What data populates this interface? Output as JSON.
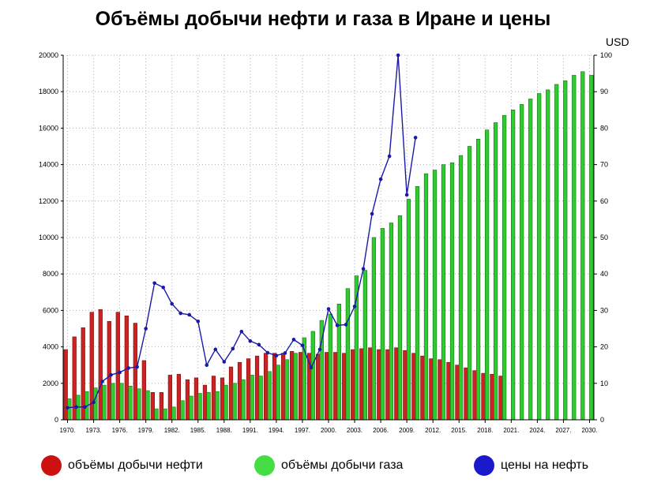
{
  "chart_data": {
    "type": "bar",
    "title": "Объёмы добычи нефти и газа в Иране и цены",
    "y2label": "USD",
    "x": [
      1970,
      1971,
      1972,
      1973,
      1974,
      1975,
      1976,
      1977,
      1978,
      1979,
      1980,
      1981,
      1982,
      1983,
      1984,
      1985,
      1986,
      1987,
      1988,
      1989,
      1990,
      1991,
      1992,
      1993,
      1994,
      1995,
      1996,
      1997,
      1998,
      1999,
      2000,
      2001,
      2002,
      2003,
      2004,
      2005,
      2006,
      2007,
      2008,
      2009,
      2010,
      2011,
      2012,
      2013,
      2014,
      2015,
      2016,
      2017,
      2018,
      2019,
      2020,
      2021,
      2022,
      2023,
      2024,
      2025,
      2026,
      2027,
      2028,
      2029,
      2030
    ],
    "xticks": [
      "1970.",
      "1973.",
      "1976.",
      "1979.",
      "1982.",
      "1985.",
      "1988.",
      "1991.",
      "1994.",
      "1997.",
      "2000.",
      "2003.",
      "2006.",
      "2009.",
      "2012.",
      "2015.",
      "2018.",
      "2021.",
      "2024.",
      "2027.",
      "2030."
    ],
    "ylim": [
      0,
      20000
    ],
    "yticks": [
      0,
      2000,
      4000,
      6000,
      8000,
      10000,
      12000,
      14000,
      16000,
      18000,
      20000
    ],
    "y2lim": [
      0,
      100
    ],
    "y2ticks": [
      0,
      10,
      20,
      30,
      40,
      50,
      60,
      70,
      80,
      90,
      100
    ],
    "grid": true,
    "legend_position": "bottom",
    "series": [
      {
        "name": "объёмы добычи нефти",
        "kind": "bar",
        "color": "#cc2222",
        "values": [
          3850,
          4550,
          5050,
          5900,
          6050,
          5400,
          5900,
          5700,
          5300,
          3250,
          1500,
          1500,
          2450,
          2500,
          2200,
          2300,
          1900,
          2400,
          2300,
          2900,
          3150,
          3350,
          3500,
          3650,
          3650,
          3650,
          3750,
          3700,
          3650,
          3600,
          3700,
          3700,
          3650,
          3850,
          3900,
          3950,
          3850,
          3850,
          3950,
          3800,
          3650,
          3500,
          3350,
          3300,
          3150,
          3000,
          2850,
          2700,
          2550,
          2500,
          2400,
          null,
          null,
          null,
          null,
          null,
          null,
          null,
          null,
          null,
          null
        ]
      },
      {
        "name": "объёмы добычи газа",
        "kind": "bar",
        "color": "#2ecc2e",
        "values": [
          1150,
          1350,
          1550,
          1750,
          1900,
          2000,
          2000,
          1850,
          1700,
          1600,
          600,
          600,
          700,
          1050,
          1300,
          1450,
          1500,
          1550,
          1900,
          2000,
          2200,
          2450,
          2400,
          2650,
          3000,
          3300,
          3650,
          4500,
          4850,
          5450,
          5800,
          6350,
          7200,
          7900,
          8200,
          10000,
          10500,
          10800,
          11200,
          12100,
          12800,
          13500,
          13700,
          14000,
          14100,
          14500,
          15000,
          15400,
          15900,
          16300,
          16700,
          17000,
          17300,
          17600,
          17900,
          18100,
          18400,
          18600,
          18900,
          19100,
          18900
        ]
      },
      {
        "name": "цены на нефть",
        "kind": "line",
        "axis": "right",
        "color": "#1a1aaa",
        "values": [
          3.3,
          3.5,
          3.5,
          4.8,
          10.5,
          12.3,
          13.0,
          14.2,
          14.5,
          25.0,
          37.5,
          36.3,
          31.8,
          29.2,
          28.8,
          27.0,
          15.0,
          19.3,
          15.9,
          19.5,
          24.2,
          21.6,
          20.6,
          18.4,
          17.6,
          18.3,
          22.0,
          20.4,
          14.3,
          19.3,
          30.4,
          25.9,
          26.1,
          31.1,
          41.4,
          56.5,
          66.0,
          72.3,
          100.0,
          61.7,
          77.4,
          null,
          null,
          null,
          null,
          null,
          null,
          null,
          null,
          null,
          null,
          null,
          null,
          null,
          null,
          null,
          null,
          null,
          null,
          null,
          null
        ]
      }
    ]
  },
  "legend": {
    "oil_label": "объёмы добычи нефти",
    "gas_label": "объёмы добычи газа",
    "price_label": "цены на нефть",
    "oil_color": "#cc1111",
    "gas_color": "#44dd44",
    "price_color": "#1a1acc"
  }
}
